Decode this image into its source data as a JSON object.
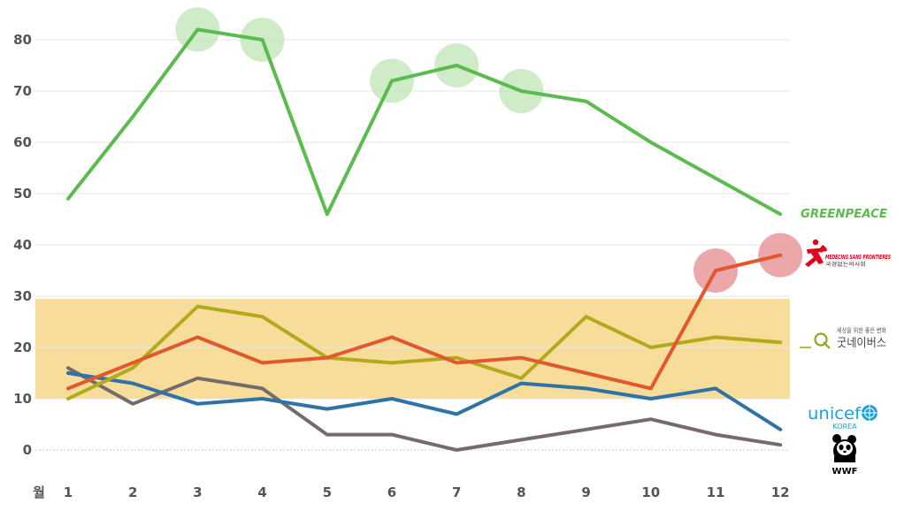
{
  "chart_data": {
    "type": "line",
    "title": "",
    "xlabel": "월",
    "ylabel": "",
    "categories": [
      "1",
      "2",
      "3",
      "4",
      "5",
      "6",
      "7",
      "8",
      "9",
      "10",
      "11",
      "12"
    ],
    "ylim": [
      0,
      85
    ],
    "yticks": [
      0,
      10,
      20,
      30,
      40,
      50,
      60,
      70,
      80
    ],
    "highlight_band": {
      "from": 10,
      "to": 29.5,
      "color": "#f7dc9a"
    },
    "series": [
      {
        "name": "GREENPEACE",
        "color": "#5cbb4e",
        "values": [
          49,
          65,
          82,
          80,
          46,
          72,
          75,
          70,
          68,
          60,
          53,
          46
        ],
        "highlight_months": [
          3,
          4,
          6,
          7,
          8
        ],
        "highlight_color": "#bfe4b5"
      },
      {
        "name": "MEDECINS SANS FRONTIERES",
        "color": "#e2572b",
        "values": [
          12,
          17,
          22,
          17,
          18,
          22,
          17,
          18,
          15,
          12,
          35,
          38
        ],
        "highlight_months": [
          11,
          12
        ],
        "highlight_color": "#e48a8c"
      },
      {
        "name": "굿네이버스",
        "color": "#b2aa1d",
        "values": [
          10,
          16,
          28,
          26,
          18,
          17,
          18,
          14,
          26,
          20,
          22,
          21
        ]
      },
      {
        "name": "unicef KOREA",
        "color": "#2d73a8",
        "values": [
          15,
          13,
          9,
          10,
          8,
          10,
          7,
          13,
          12,
          10,
          12,
          4
        ]
      },
      {
        "name": "WWF",
        "color": "#766b6b",
        "values": [
          16,
          9,
          14,
          12,
          3,
          3,
          0,
          2,
          4,
          6,
          3,
          1
        ]
      }
    ],
    "legend": {
      "placement": "right",
      "greenpeace": "GREENPEACE",
      "msf_line1": "MEDECINS SANS FRONTIERES",
      "msf_line2": "국경없는의사회",
      "gn_tagline": "세상을 위한 좋은 변화",
      "gn_name": "굿네이버스",
      "unicef_name": "unicef",
      "unicef_sub": "KOREA",
      "wwf": "WWF"
    },
    "colors": {
      "greenpeace": "#5cbb4e",
      "msf": "#e2001a",
      "goodneighbors": "#8aa81e",
      "unicef": "#1ca0db",
      "wwf": "#000000",
      "grid": "#e4e4e4",
      "tick": "#555555"
    }
  }
}
